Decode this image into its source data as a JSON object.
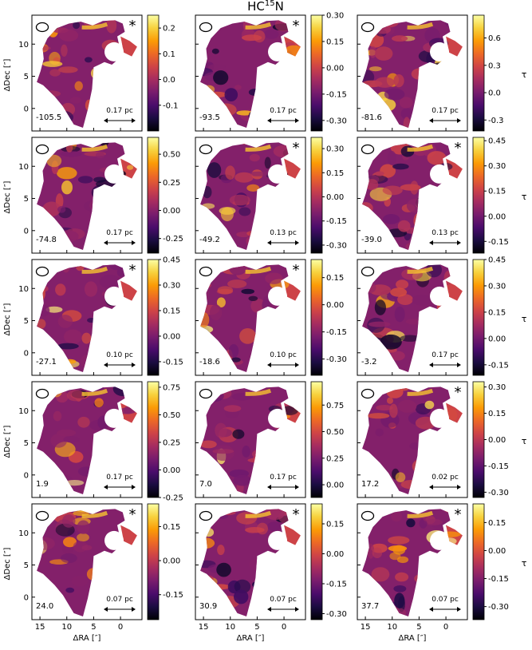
{
  "figure": {
    "title": "HC",
    "title_sup": "15",
    "title_end": "N"
  },
  "colors": {
    "cmap": [
      "#000004",
      "#1b0c41",
      "#4a0c6b",
      "#781c6d",
      "#a52c60",
      "#cf4446",
      "#ed6925",
      "#fb9b06",
      "#f7d13d",
      "#fcffa4"
    ],
    "frame": "#000000",
    "background": "#ffffff"
  },
  "chart_data": {
    "type": "heatmap",
    "xlabel": "ΔRA [″]",
    "ylabel": "ΔDec [″]",
    "colorbar_label": "τ",
    "x_ticks": [
      "15",
      "10",
      "5",
      "0"
    ],
    "y_ticks": [
      "0",
      "5",
      "10"
    ],
    "xlim": [
      16.5,
      -4
    ],
    "ylim": [
      -3.5,
      14.5
    ],
    "panels": [
      {
        "velocity": "-105.5",
        "scale_bar": "0.17 pc",
        "star": true,
        "cbar_ticks": [
          "-0.1",
          "0.0",
          "0.1",
          "0.2"
        ],
        "cbar_range": [
          -0.2,
          0.25
        ]
      },
      {
        "velocity": "-93.5",
        "scale_bar": "0.17 pc",
        "star": true,
        "cbar_ticks": [
          "-0.30",
          "-0.15",
          "0.00",
          "0.15",
          "0.30"
        ],
        "cbar_range": [
          -0.36,
          0.3
        ]
      },
      {
        "velocity": "-81.6",
        "scale_bar": "0.17 pc",
        "star": false,
        "cbar_ticks": [
          "-0.3",
          "0.0",
          "0.3",
          "0.6"
        ],
        "cbar_range": [
          -0.42,
          0.85
        ]
      },
      {
        "velocity": "-74.8",
        "scale_bar": "0.17 pc",
        "star": false,
        "cbar_ticks": [
          "-0.25",
          "0.00",
          "0.25",
          "0.50"
        ],
        "cbar_range": [
          -0.38,
          0.65
        ]
      },
      {
        "velocity": "-49.2",
        "scale_bar": "0.13 pc",
        "star": true,
        "cbar_ticks": [
          "-0.30",
          "-0.15",
          "0.00",
          "0.15",
          "0.30"
        ],
        "cbar_range": [
          -0.35,
          0.37
        ]
      },
      {
        "velocity": "-39.0",
        "scale_bar": "0.13 pc",
        "star": true,
        "cbar_ticks": [
          "-0.15",
          "0.00",
          "0.15",
          "0.30",
          "0.45"
        ],
        "cbar_range": [
          -0.22,
          0.47
        ]
      },
      {
        "velocity": "-27.1",
        "scale_bar": "0.10 pc",
        "star": true,
        "cbar_ticks": [
          "-0.15",
          "0.00",
          "0.15",
          "0.30",
          "0.45"
        ],
        "cbar_range": [
          -0.23,
          0.45
        ]
      },
      {
        "velocity": "-18.6",
        "scale_bar": "0.10 pc",
        "star": true,
        "cbar_ticks": [
          "-0.30",
          "-0.15",
          "0.00",
          "0.15"
        ],
        "cbar_range": [
          -0.39,
          0.25
        ]
      },
      {
        "velocity": "-3.2",
        "scale_bar": "0.17 pc",
        "star": false,
        "cbar_ticks": [
          "-0.15",
          "0.00",
          "0.15",
          "0.30",
          "0.45"
        ],
        "cbar_range": [
          -0.21,
          0.45
        ]
      },
      {
        "velocity": "1.9",
        "scale_bar": "0.17 pc",
        "star": false,
        "cbar_ticks": [
          "-0.25",
          "0.00",
          "0.25",
          "0.50",
          "0.75"
        ],
        "cbar_range": [
          -0.25,
          0.8
        ]
      },
      {
        "velocity": "7.0",
        "scale_bar": "0.17 pc",
        "star": false,
        "cbar_ticks": [
          "0.00",
          "0.25",
          "0.50",
          "0.75"
        ],
        "cbar_range": [
          -0.12,
          0.97
        ]
      },
      {
        "velocity": "17.2",
        "scale_bar": "0.02 pc",
        "star": true,
        "cbar_ticks": [
          "-0.30",
          "-0.15",
          "0.00",
          "0.15",
          "0.30"
        ],
        "cbar_range": [
          -0.33,
          0.33
        ]
      },
      {
        "velocity": "24.0",
        "scale_bar": "0.07 pc",
        "star": true,
        "cbar_ticks": [
          "-0.15",
          "0.00",
          "0.15"
        ],
        "cbar_range": [
          -0.26,
          0.25
        ]
      },
      {
        "velocity": "30.9",
        "scale_bar": "0.07 pc",
        "star": true,
        "cbar_ticks": [
          "-0.30",
          "-0.15",
          "0.00",
          "0.15"
        ],
        "cbar_range": [
          -0.33,
          0.25
        ]
      },
      {
        "velocity": "37.7",
        "scale_bar": "0.07 pc",
        "star": true,
        "cbar_ticks": [
          "-0.30",
          "-0.15",
          "0.00",
          "0.15"
        ],
        "cbar_range": [
          -0.37,
          0.25
        ]
      }
    ]
  }
}
